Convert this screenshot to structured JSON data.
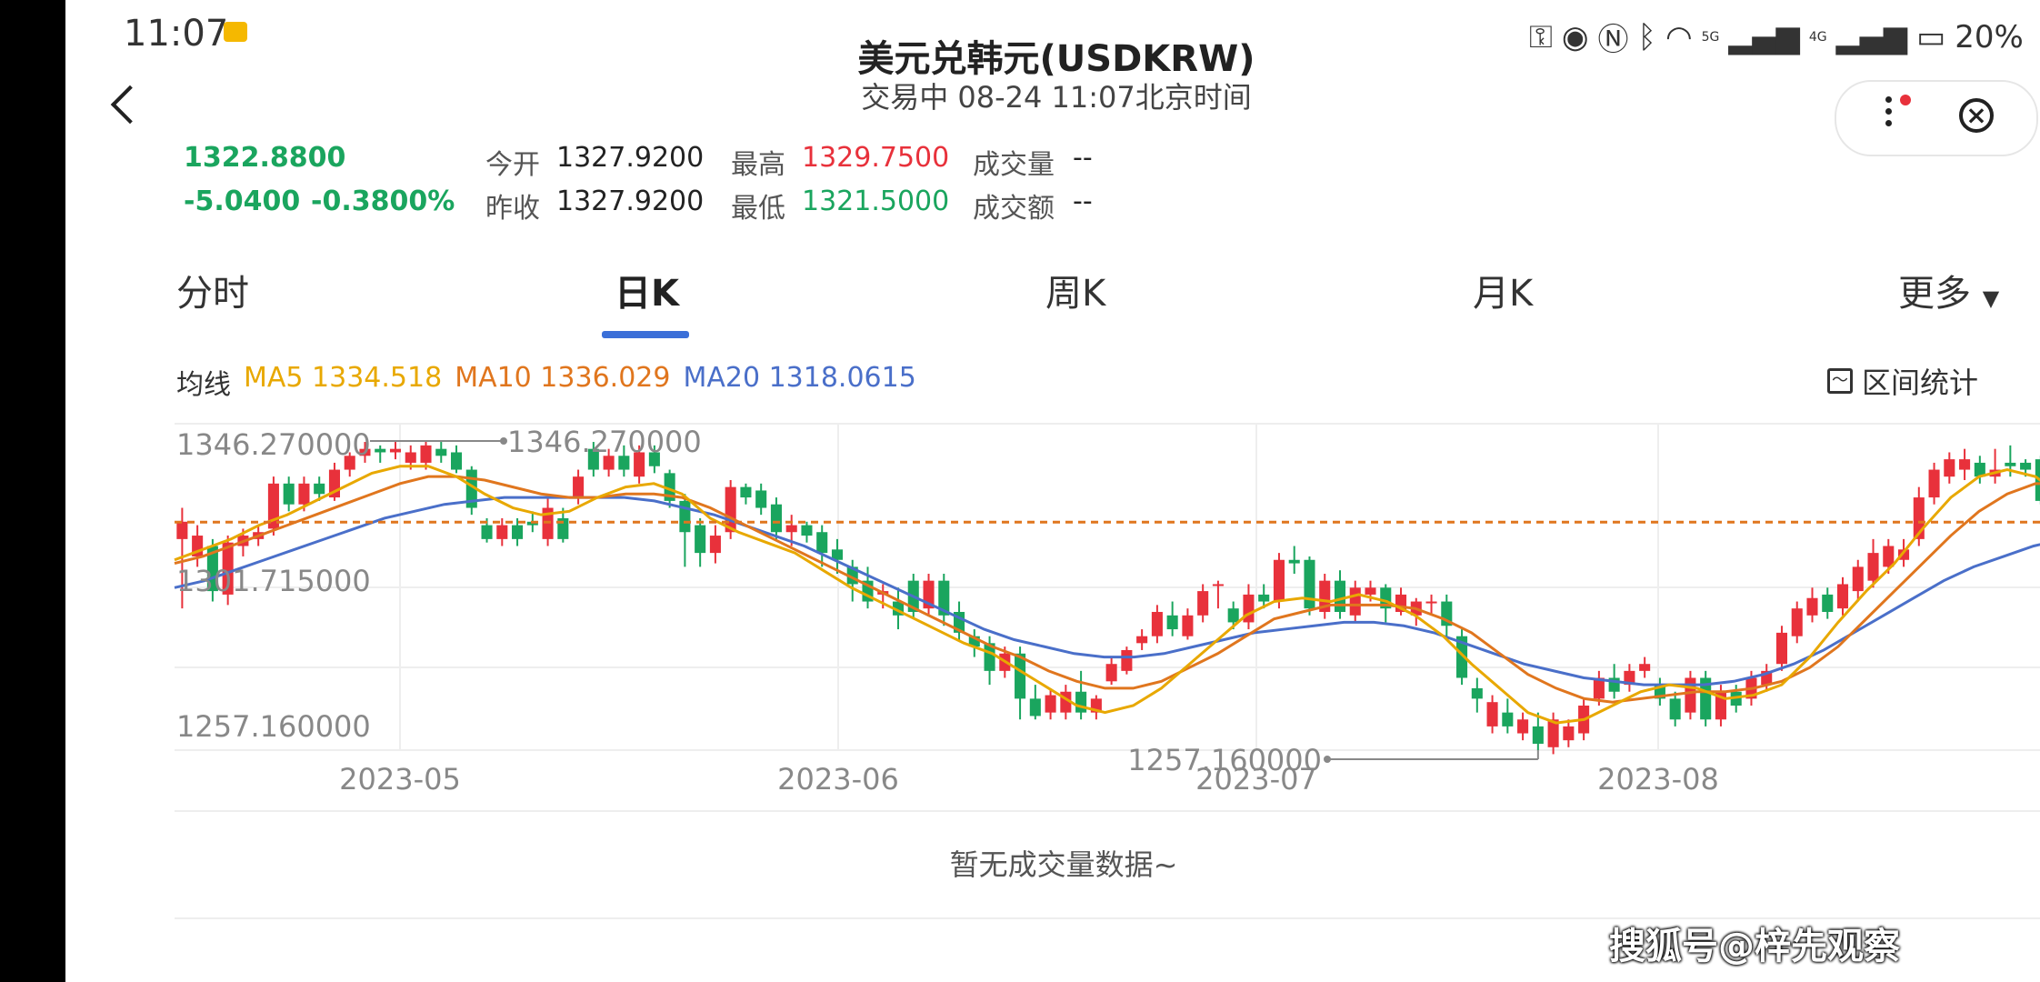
{
  "status_bar": {
    "time": "11:07",
    "battery": "20%",
    "signal_5g": "5G",
    "signal_4g": "4G",
    "icons": [
      "key-icon",
      "eye-icon",
      "nfc-icon",
      "bluetooth-icon",
      "wifi-icon",
      "battery-icon"
    ]
  },
  "header": {
    "title": "美元兑韩元(USDKRW)",
    "subtitle": "交易中 08-24 11:07北京时间"
  },
  "quote": {
    "price": "1322.8800",
    "change": "-5.0400",
    "change_pct": "-0.3800%",
    "open_label": "今开",
    "open_value": "1327.9200",
    "prev_close_label": "昨收",
    "prev_close_value": "1327.9200",
    "high_label": "最高",
    "high_value": "1329.7500",
    "low_label": "最低",
    "low_value": "1321.5000",
    "volume_label": "成交量",
    "volume_value": "--",
    "turnover_label": "成交额",
    "turnover_value": "--"
  },
  "tabs": {
    "intraday": "分时",
    "daily": "日K",
    "weekly": "周K",
    "monthly": "月K",
    "more": "更多"
  },
  "ma": {
    "label": "均线",
    "ma5": "MA5 1334.518",
    "ma10": "MA10 1336.029",
    "ma20": "MA20 1318.0615",
    "colors": {
      "ma5": "#e8a800",
      "ma10": "#e0761e",
      "ma20": "#4a6fc9"
    }
  },
  "range_stat": "区间统计",
  "no_volume": "暂无成交量数据~",
  "watermark": "搜狐号@梓先观察",
  "chart_data": {
    "type": "candlestick",
    "y_labels": [
      "1346.270000",
      "1301.715000",
      "1257.160000"
    ],
    "x_labels": [
      "2023-05",
      "2023-06",
      "2023-07",
      "2023-08"
    ],
    "max_annotation": "1346.270000",
    "min_annotation": "1257.160000",
    "ylim": [
      1257.16,
      1346.27
    ],
    "current_price_line": 1322.88,
    "up_color": "#e8313b",
    "down_color": "#1aa55e",
    "candles": [
      [
        1318,
        1323,
        1298,
        1327
      ],
      [
        1313,
        1319,
        1310,
        1322
      ],
      [
        1316,
        1303,
        1300,
        1318
      ],
      [
        1302,
        1317,
        1299,
        1319
      ],
      [
        1316,
        1319,
        1313,
        1321
      ],
      [
        1318,
        1320,
        1316,
        1322
      ],
      [
        1321,
        1334,
        1319,
        1336
      ],
      [
        1334,
        1328,
        1326,
        1336
      ],
      [
        1328,
        1334,
        1326,
        1336
      ],
      [
        1334,
        1331,
        1329,
        1336
      ],
      [
        1330,
        1338,
        1329,
        1340
      ],
      [
        1338,
        1342,
        1336,
        1343
      ],
      [
        1342,
        1344,
        1340,
        1346
      ],
      [
        1344,
        1343,
        1340,
        1345
      ],
      [
        1343,
        1344,
        1341,
        1346
      ],
      [
        1340,
        1343,
        1338,
        1345
      ],
      [
        1340,
        1345,
        1338,
        1346.27
      ],
      [
        1344,
        1342,
        1340,
        1346
      ],
      [
        1343,
        1338,
        1337,
        1345
      ],
      [
        1338,
        1327,
        1325,
        1339
      ],
      [
        1322,
        1318,
        1317,
        1324
      ],
      [
        1318,
        1322,
        1316,
        1324
      ],
      [
        1322,
        1318,
        1316,
        1324
      ],
      [
        1323,
        1322,
        1320,
        1326
      ],
      [
        1318,
        1327,
        1316,
        1330
      ],
      [
        1324,
        1318,
        1317,
        1327
      ],
      [
        1330,
        1336,
        1328,
        1338
      ],
      [
        1344,
        1338,
        1336,
        1346
      ],
      [
        1338,
        1342,
        1336,
        1344
      ],
      [
        1342,
        1338,
        1336,
        1345
      ],
      [
        1336,
        1343,
        1334,
        1345
      ],
      [
        1343,
        1339,
        1337,
        1345
      ],
      [
        1337,
        1329,
        1327,
        1338
      ],
      [
        1329,
        1320,
        1310,
        1331
      ],
      [
        1322,
        1314,
        1310,
        1324
      ],
      [
        1314,
        1319,
        1311,
        1322
      ],
      [
        1320,
        1333,
        1318,
        1335
      ],
      [
        1333,
        1330,
        1328,
        1334
      ],
      [
        1332,
        1327,
        1325,
        1334
      ],
      [
        1328,
        1320,
        1318,
        1330
      ],
      [
        1320,
        1322,
        1316,
        1325
      ],
      [
        1322,
        1319,
        1317,
        1323
      ],
      [
        1320,
        1314,
        1310,
        1322
      ],
      [
        1315,
        1312,
        1308,
        1318
      ],
      [
        1310,
        1305,
        1300,
        1312
      ],
      [
        1306,
        1300,
        1298,
        1310
      ],
      [
        1302,
        1303,
        1298,
        1305
      ],
      [
        1300,
        1296,
        1292,
        1304
      ],
      [
        1306,
        1297,
        1295,
        1308
      ],
      [
        1298,
        1306,
        1296,
        1308
      ],
      [
        1306,
        1296,
        1293,
        1308
      ],
      [
        1297,
        1291,
        1289,
        1300
      ],
      [
        1290,
        1287,
        1284,
        1292
      ],
      [
        1288,
        1280,
        1276,
        1290
      ],
      [
        1280,
        1285,
        1278,
        1287
      ],
      [
        1285,
        1272,
        1266,
        1287
      ],
      [
        1272,
        1267,
        1266,
        1276
      ],
      [
        1268,
        1273,
        1266,
        1275
      ],
      [
        1268,
        1274,
        1266,
        1276
      ],
      [
        1274,
        1268,
        1266,
        1280
      ],
      [
        1268,
        1272,
        1266,
        1273
      ],
      [
        1277,
        1282,
        1276,
        1284
      ],
      [
        1280,
        1286,
        1279,
        1287
      ],
      [
        1288,
        1290,
        1286,
        1292
      ],
      [
        1290,
        1297,
        1288,
        1299
      ],
      [
        1296,
        1292,
        1290,
        1300
      ],
      [
        1290,
        1296,
        1289,
        1298
      ],
      [
        1296,
        1303,
        1294,
        1305
      ],
      [
        1305,
        1305,
        1298,
        1306
      ],
      [
        1298,
        1294,
        1292,
        1300
      ],
      [
        1294,
        1302,
        1292,
        1305
      ],
      [
        1302,
        1300,
        1298,
        1305
      ],
      [
        1300,
        1312,
        1298,
        1314
      ],
      [
        1312,
        1311,
        1308,
        1316
      ],
      [
        1312,
        1298,
        1296,
        1313
      ],
      [
        1297,
        1306,
        1295,
        1308
      ],
      [
        1306,
        1297,
        1295,
        1309
      ],
      [
        1296,
        1304,
        1294,
        1306
      ],
      [
        1302,
        1304,
        1300,
        1306
      ],
      [
        1304,
        1298,
        1294,
        1305
      ],
      [
        1297,
        1302,
        1296,
        1304
      ],
      [
        1296,
        1300,
        1293,
        1301
      ],
      [
        1300,
        1300,
        1296,
        1302
      ],
      [
        1300,
        1293,
        1290,
        1302
      ],
      [
        1290,
        1278,
        1276,
        1292
      ],
      [
        1275,
        1272,
        1268,
        1278
      ],
      [
        1264,
        1271,
        1262,
        1273
      ],
      [
        1268,
        1264,
        1262,
        1272
      ],
      [
        1262,
        1266,
        1260,
        1268
      ],
      [
        1264,
        1259,
        1257.16,
        1268
      ],
      [
        1258,
        1266,
        1256,
        1268
      ],
      [
        1260,
        1264,
        1258,
        1266
      ],
      [
        1262,
        1270,
        1260,
        1272
      ],
      [
        1272,
        1278,
        1270,
        1280
      ],
      [
        1278,
        1274,
        1272,
        1282
      ],
      [
        1276,
        1280,
        1274,
        1282
      ],
      [
        1280,
        1282,
        1278,
        1284
      ],
      [
        1276,
        1272,
        1270,
        1278
      ],
      [
        1272,
        1266,
        1264,
        1274
      ],
      [
        1268,
        1278,
        1266,
        1280
      ],
      [
        1278,
        1266,
        1264,
        1280
      ],
      [
        1266,
        1274,
        1264,
        1276
      ],
      [
        1274,
        1270,
        1268,
        1276
      ],
      [
        1272,
        1278,
        1270,
        1280
      ],
      [
        1276,
        1280,
        1274,
        1282
      ],
      [
        1282,
        1291,
        1280,
        1293
      ],
      [
        1290,
        1298,
        1288,
        1300
      ],
      [
        1296,
        1301,
        1294,
        1304
      ],
      [
        1302,
        1297,
        1295,
        1304
      ],
      [
        1298,
        1305,
        1296,
        1307
      ],
      [
        1303,
        1310,
        1300,
        1312
      ],
      [
        1306,
        1314,
        1304,
        1318
      ],
      [
        1310,
        1316,
        1308,
        1318
      ],
      [
        1312,
        1315,
        1310,
        1318
      ],
      [
        1318,
        1330,
        1316,
        1333
      ],
      [
        1330,
        1338,
        1328,
        1340
      ],
      [
        1336,
        1341,
        1334,
        1343
      ],
      [
        1338,
        1341,
        1335,
        1344
      ],
      [
        1340,
        1336,
        1334,
        1342
      ],
      [
        1336,
        1338,
        1334,
        1344
      ],
      [
        1340,
        1339,
        1336,
        1345
      ],
      [
        1340,
        1338,
        1336,
        1341
      ],
      [
        1341,
        1329,
        1328,
        1342
      ],
      [
        1329,
        1323,
        1321,
        1330
      ]
    ],
    "ma5": [
      1312,
      1315,
      1318,
      1322,
      1325,
      1329,
      1333,
      1337,
      1339,
      1339,
      1336,
      1331,
      1327,
      1325,
      1326,
      1330,
      1333,
      1334,
      1331,
      1324,
      1320,
      1317,
      1314,
      1309,
      1304,
      1300,
      1296,
      1292,
      1288,
      1285,
      1280,
      1275,
      1270,
      1268,
      1270,
      1275,
      1282,
      1289,
      1296,
      1300,
      1301,
      1300,
      1302,
      1300,
      1296,
      1290,
      1282,
      1275,
      1268,
      1265,
      1266,
      1270,
      1274,
      1276,
      1275,
      1272,
      1273,
      1276,
      1284,
      1294,
      1303,
      1311,
      1321,
      1330,
      1336,
      1338,
      1336,
      1330
    ],
    "ma10": [
      1311,
      1313,
      1316,
      1319,
      1322,
      1325,
      1328,
      1331,
      1334,
      1336,
      1336,
      1335,
      1333,
      1331,
      1330,
      1330,
      1331,
      1331,
      1330,
      1327,
      1323,
      1319,
      1315,
      1311,
      1307,
      1303,
      1299,
      1295,
      1291,
      1287,
      1284,
      1280,
      1277,
      1275,
      1275,
      1277,
      1281,
      1285,
      1290,
      1295,
      1297,
      1299,
      1299,
      1299,
      1298,
      1295,
      1291,
      1285,
      1279,
      1275,
      1272,
      1271,
      1272,
      1273,
      1274,
      1274,
      1275,
      1277,
      1281,
      1287,
      1295,
      1303,
      1311,
      1319,
      1326,
      1331,
      1334,
      1334
    ],
    "ma20": [
      1304,
      1306,
      1309,
      1312,
      1315,
      1318,
      1321,
      1324,
      1326,
      1328,
      1329,
      1330,
      1330,
      1330,
      1330,
      1330,
      1329,
      1327,
      1325,
      1322,
      1319,
      1316,
      1312,
      1308,
      1304,
      1300,
      1296,
      1292,
      1289,
      1287,
      1285,
      1284,
      1284,
      1285,
      1287,
      1289,
      1291,
      1292,
      1293,
      1294,
      1294,
      1293,
      1291,
      1288,
      1285,
      1282,
      1280,
      1278,
      1277,
      1276,
      1276,
      1276,
      1277,
      1279,
      1282,
      1286,
      1291,
      1296,
      1301,
      1306,
      1310,
      1313,
      1316,
      1318
    ]
  }
}
